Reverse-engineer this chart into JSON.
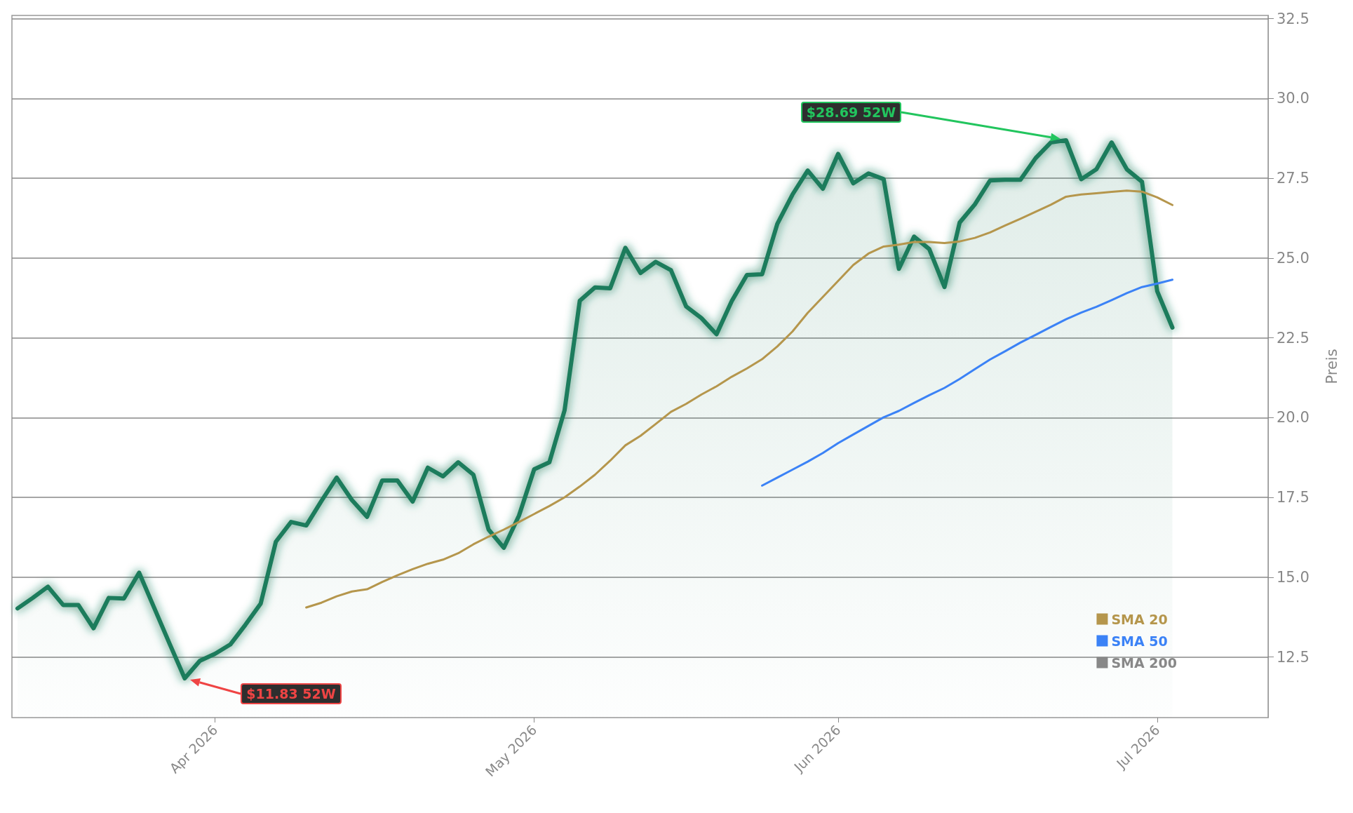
{
  "chart_data": {
    "type": "line",
    "ylabel": "Preis",
    "categories": [
      null,
      null,
      null,
      null,
      null,
      null,
      null,
      null,
      null,
      null,
      null,
      null,
      null,
      "Apr 2026",
      null,
      null,
      null,
      null,
      null,
      null,
      null,
      null,
      null,
      null,
      null,
      null,
      null,
      null,
      null,
      null,
      null,
      null,
      null,
      null,
      "May 2026",
      null,
      null,
      null,
      null,
      null,
      null,
      null,
      null,
      null,
      null,
      null,
      null,
      null,
      null,
      null,
      null,
      null,
      null,
      null,
      "Jun 2026",
      null,
      null,
      null,
      null,
      null,
      null,
      null,
      null,
      null,
      null,
      null,
      null,
      null,
      null,
      null,
      null,
      null,
      null,
      null,
      null,
      "Jul 2026",
      null
    ],
    "series": [
      {
        "type": "area",
        "color": "#1e7b5c",
        "values": [
          14.02,
          14.35,
          14.7,
          14.13,
          14.13,
          13.4,
          14.35,
          14.33,
          15.14,
          14.03,
          12.92,
          11.83,
          12.38,
          12.6,
          12.89,
          13.51,
          14.17,
          16.11,
          16.73,
          16.62,
          17.39,
          18.12,
          17.42,
          16.89,
          18.03,
          18.03,
          17.37,
          18.43,
          18.16,
          18.6,
          18.21,
          16.49,
          15.92,
          16.93,
          18.38,
          18.6,
          20.23,
          23.66,
          24.08,
          24.05,
          25.32,
          24.53,
          24.88,
          24.62,
          23.48,
          23.12,
          22.61,
          23.65,
          24.47,
          24.49,
          26.07,
          26.99,
          27.74,
          27.17,
          28.26,
          27.34,
          27.65,
          27.47,
          24.66,
          25.67,
          25.28,
          24.09,
          26.11,
          26.68,
          27.43,
          27.45,
          27.45,
          28.13,
          28.62,
          28.69,
          27.47,
          27.78,
          28.62,
          27.78,
          27.39,
          23.96,
          22.82
        ]
      },
      {
        "name": "SMA 20",
        "color": "#b5964c",
        "values": [
          null,
          null,
          null,
          null,
          null,
          null,
          null,
          null,
          null,
          null,
          null,
          null,
          null,
          null,
          null,
          null,
          null,
          null,
          null,
          14.05,
          14.2,
          14.4,
          14.55,
          14.62,
          14.85,
          15.06,
          15.25,
          15.42,
          15.55,
          15.75,
          16.03,
          16.27,
          16.49,
          16.73,
          16.98,
          17.23,
          17.5,
          17.84,
          18.21,
          18.65,
          19.13,
          19.43,
          19.8,
          20.18,
          20.43,
          20.72,
          20.98,
          21.28,
          21.54,
          21.83,
          22.23,
          22.7,
          23.28,
          23.78,
          24.28,
          24.78,
          25.14,
          25.36,
          25.42,
          25.5,
          25.5,
          25.47,
          25.52,
          25.63,
          25.8,
          26.02,
          26.23,
          26.45,
          26.67,
          26.92,
          26.99,
          27.03,
          27.07,
          27.11,
          27.08,
          26.9,
          26.66
        ]
      },
      {
        "name": "SMA 50",
        "color": "#3b82f6",
        "values": [
          null,
          null,
          null,
          null,
          null,
          null,
          null,
          null,
          null,
          null,
          null,
          null,
          null,
          null,
          null,
          null,
          null,
          null,
          null,
          null,
          null,
          null,
          null,
          null,
          null,
          null,
          null,
          null,
          null,
          null,
          null,
          null,
          null,
          null,
          null,
          null,
          null,
          null,
          null,
          null,
          null,
          null,
          null,
          null,
          null,
          null,
          null,
          null,
          null,
          17.87,
          18.12,
          18.37,
          18.62,
          18.89,
          19.2,
          19.47,
          19.74,
          20.01,
          20.21,
          20.46,
          20.7,
          20.93,
          21.21,
          21.52,
          21.82,
          22.08,
          22.35,
          22.59,
          22.84,
          23.08,
          23.29,
          23.47,
          23.68,
          23.9,
          24.09,
          24.2,
          24.32
        ]
      },
      {
        "name": "SMA 200",
        "color": "#888888",
        "values": [
          null,
          null,
          null,
          null,
          null,
          null,
          null,
          null,
          null,
          null,
          null,
          null,
          null,
          null,
          null,
          null,
          null,
          null,
          null,
          null,
          null,
          null,
          null,
          null,
          null,
          null,
          null,
          null,
          null,
          null,
          null,
          null,
          null,
          null,
          null,
          null,
          null,
          null,
          null,
          null,
          null,
          null,
          null,
          null,
          null,
          null,
          null,
          null,
          null,
          null,
          null,
          null,
          null,
          null,
          null,
          null,
          null,
          null,
          null,
          null,
          null,
          null,
          null,
          null,
          null,
          null,
          null,
          null,
          null,
          null,
          null,
          null,
          null,
          null,
          null,
          null,
          null
        ]
      }
    ],
    "ylim": [
      10.6,
      32.6
    ],
    "yticks": [
      12.5,
      {
        "value": 15,
        "label": "15.0"
      },
      17.5,
      {
        "value": 20,
        "label": "20.0"
      },
      22.5,
      {
        "value": 25,
        "label": "25.0"
      },
      27.5,
      {
        "value": 30,
        "label": "30.0"
      },
      32.5
    ],
    "grid": "y",
    "legend": "bottom right",
    "marker": "none",
    "line_style": "solid",
    "annotations": [
      "$28.69 52W",
      "$11.83 52W"
    ]
  }
}
